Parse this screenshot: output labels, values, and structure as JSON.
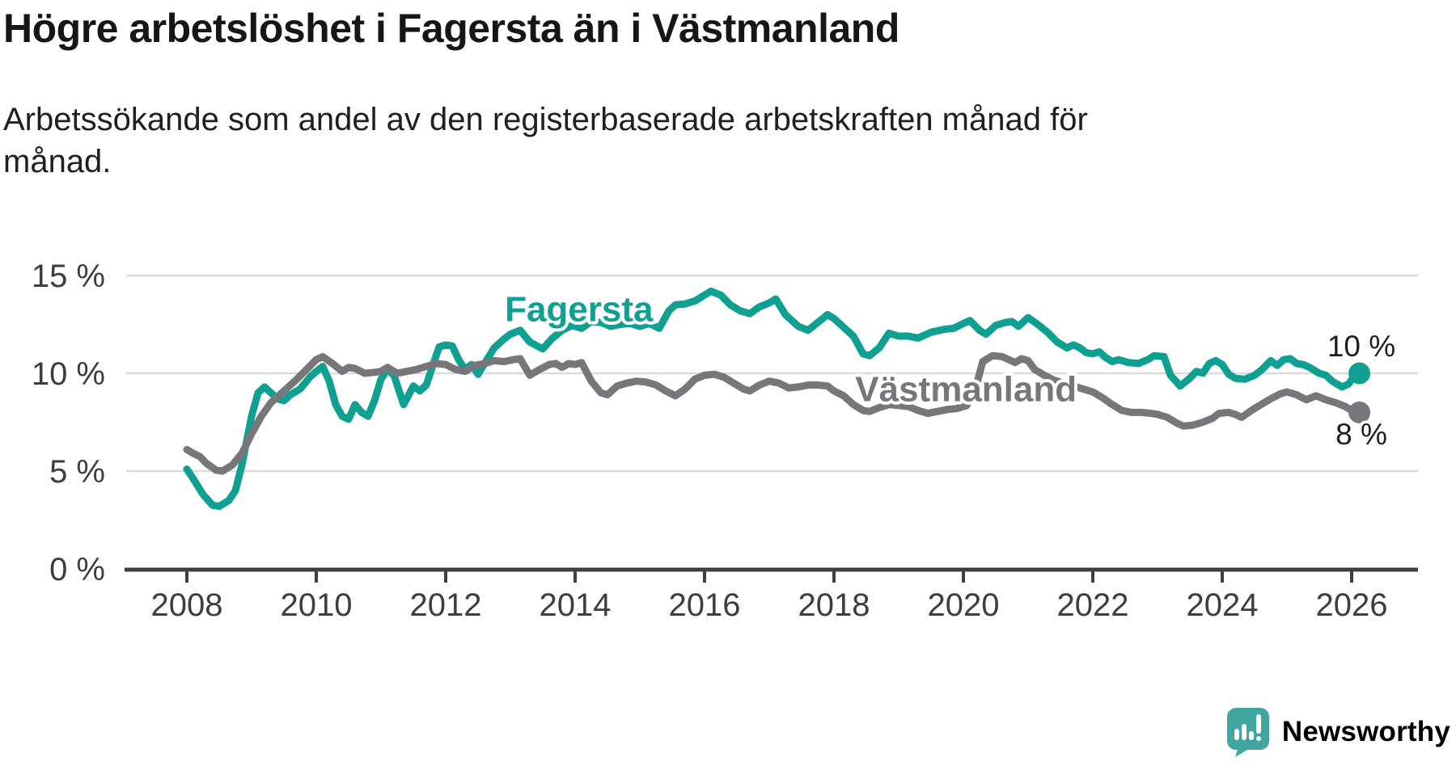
{
  "header": {
    "title": "Högre arbetslöshet i Fagersta än i Västmanland",
    "subtitle": "Arbetssökande som andel av den registerbaserade arbetskraften månad för månad."
  },
  "colors": {
    "fagersta": "#10a091",
    "vastmanland": "#77777b",
    "grid": "#dbdbdb",
    "axis": "#3f3f3f",
    "tick_text": "#3d3d3d",
    "annotation_text": "#1e1e1e",
    "logo": "#41a5a1",
    "background": "#ffffff"
  },
  "footer": {
    "brand": "Newsworthy"
  },
  "chart_data": {
    "type": "line",
    "title": "Högre arbetslöshet i Fagersta än i Västmanland",
    "subtitle": "Arbetssökande som andel av den registerbaserade arbetskraften månad för månad.",
    "xlabel": "",
    "ylabel": "",
    "grid": true,
    "x_axis": {
      "ticks": [
        2008,
        2010,
        2012,
        2014,
        2016,
        2018,
        2020,
        2022,
        2024,
        2026
      ],
      "min": 2007.1,
      "max": 2027.0
    },
    "y_axis": {
      "unit": "%",
      "ylim": [
        0,
        15
      ],
      "ticks": [
        {
          "value": 0,
          "label": "0 %"
        },
        {
          "value": 5,
          "label": "5 %"
        },
        {
          "value": 10,
          "label": "10 %"
        },
        {
          "value": 15,
          "label": "15 %"
        }
      ]
    },
    "annotations": [
      {
        "kind": "series",
        "series": 0,
        "text": "Fagersta",
        "year": 2014.06,
        "value": 13.31
      },
      {
        "kind": "series",
        "series": 1,
        "text": "Västmanland",
        "year": 2020.04,
        "value": 9.21
      },
      {
        "kind": "end",
        "series": 0,
        "text": "10 %",
        "year": 2026.15,
        "value": 11.4
      },
      {
        "kind": "end",
        "series": 1,
        "text": "8 %",
        "year": 2026.15,
        "value": 6.9
      }
    ],
    "series": [
      {
        "name": "Fagersta",
        "color": "#10a091",
        "end_value_label": "10 %",
        "points": [
          [
            2008.0,
            5.1
          ],
          [
            2008.1,
            4.6
          ],
          [
            2008.25,
            3.8
          ],
          [
            2008.4,
            3.25
          ],
          [
            2008.5,
            3.2
          ],
          [
            2008.65,
            3.5
          ],
          [
            2008.75,
            4.0
          ],
          [
            2008.85,
            5.3
          ],
          [
            2009.0,
            7.8
          ],
          [
            2009.1,
            9.0
          ],
          [
            2009.2,
            9.3
          ],
          [
            2009.3,
            9.0
          ],
          [
            2009.4,
            8.7
          ],
          [
            2009.5,
            8.6
          ],
          [
            2009.6,
            8.9
          ],
          [
            2009.75,
            9.2
          ],
          [
            2009.9,
            9.8
          ],
          [
            2010.0,
            10.1
          ],
          [
            2010.1,
            10.35
          ],
          [
            2010.2,
            9.6
          ],
          [
            2010.3,
            8.4
          ],
          [
            2010.4,
            7.8
          ],
          [
            2010.5,
            7.65
          ],
          [
            2010.6,
            8.4
          ],
          [
            2010.7,
            8.0
          ],
          [
            2010.8,
            7.8
          ],
          [
            2010.9,
            8.6
          ],
          [
            2011.0,
            9.7
          ],
          [
            2011.1,
            10.2
          ],
          [
            2011.2,
            9.9
          ],
          [
            2011.35,
            8.4
          ],
          [
            2011.5,
            9.35
          ],
          [
            2011.6,
            9.1
          ],
          [
            2011.7,
            9.4
          ],
          [
            2011.8,
            10.4
          ],
          [
            2011.9,
            11.35
          ],
          [
            2012.0,
            11.45
          ],
          [
            2012.1,
            11.4
          ],
          [
            2012.2,
            10.7
          ],
          [
            2012.3,
            10.2
          ],
          [
            2012.4,
            10.45
          ],
          [
            2012.5,
            9.95
          ],
          [
            2012.6,
            10.5
          ],
          [
            2012.75,
            11.3
          ],
          [
            2012.9,
            11.75
          ],
          [
            2013.0,
            12.0
          ],
          [
            2013.15,
            12.2
          ],
          [
            2013.3,
            11.6
          ],
          [
            2013.5,
            11.25
          ],
          [
            2013.65,
            11.8
          ],
          [
            2013.8,
            12.2
          ],
          [
            2013.95,
            12.45
          ],
          [
            2014.1,
            12.3
          ],
          [
            2014.25,
            12.65
          ],
          [
            2014.4,
            12.6
          ],
          [
            2014.55,
            12.4
          ],
          [
            2014.7,
            12.5
          ],
          [
            2014.85,
            12.55
          ],
          [
            2015.0,
            12.4
          ],
          [
            2015.15,
            12.55
          ],
          [
            2015.3,
            12.3
          ],
          [
            2015.45,
            13.2
          ],
          [
            2015.55,
            13.5
          ],
          [
            2015.7,
            13.55
          ],
          [
            2015.85,
            13.7
          ],
          [
            2016.0,
            14.0
          ],
          [
            2016.1,
            14.2
          ],
          [
            2016.25,
            14.0
          ],
          [
            2016.4,
            13.5
          ],
          [
            2016.55,
            13.2
          ],
          [
            2016.7,
            13.05
          ],
          [
            2016.85,
            13.4
          ],
          [
            2017.0,
            13.6
          ],
          [
            2017.1,
            13.8
          ],
          [
            2017.25,
            13.0
          ],
          [
            2017.45,
            12.4
          ],
          [
            2017.6,
            12.2
          ],
          [
            2017.75,
            12.6
          ],
          [
            2017.9,
            13.0
          ],
          [
            2018.0,
            12.8
          ],
          [
            2018.15,
            12.35
          ],
          [
            2018.3,
            11.9
          ],
          [
            2018.45,
            11.0
          ],
          [
            2018.55,
            10.9
          ],
          [
            2018.7,
            11.3
          ],
          [
            2018.85,
            12.05
          ],
          [
            2019.0,
            11.9
          ],
          [
            2019.15,
            11.9
          ],
          [
            2019.3,
            11.8
          ],
          [
            2019.5,
            12.1
          ],
          [
            2019.7,
            12.25
          ],
          [
            2019.85,
            12.3
          ],
          [
            2020.0,
            12.55
          ],
          [
            2020.1,
            12.7
          ],
          [
            2020.25,
            12.2
          ],
          [
            2020.35,
            12.0
          ],
          [
            2020.5,
            12.45
          ],
          [
            2020.65,
            12.6
          ],
          [
            2020.75,
            12.65
          ],
          [
            2020.85,
            12.4
          ],
          [
            2021.0,
            12.85
          ],
          [
            2021.15,
            12.5
          ],
          [
            2021.3,
            12.1
          ],
          [
            2021.45,
            11.6
          ],
          [
            2021.6,
            11.3
          ],
          [
            2021.7,
            11.45
          ],
          [
            2021.8,
            11.3
          ],
          [
            2021.9,
            11.05
          ],
          [
            2022.0,
            11.0
          ],
          [
            2022.1,
            11.1
          ],
          [
            2022.2,
            10.8
          ],
          [
            2022.3,
            10.6
          ],
          [
            2022.4,
            10.7
          ],
          [
            2022.55,
            10.55
          ],
          [
            2022.7,
            10.5
          ],
          [
            2022.85,
            10.7
          ],
          [
            2022.95,
            10.9
          ],
          [
            2023.1,
            10.85
          ],
          [
            2023.2,
            9.9
          ],
          [
            2023.35,
            9.35
          ],
          [
            2023.5,
            9.75
          ],
          [
            2023.6,
            10.1
          ],
          [
            2023.7,
            10.0
          ],
          [
            2023.8,
            10.5
          ],
          [
            2023.9,
            10.65
          ],
          [
            2024.0,
            10.45
          ],
          [
            2024.1,
            9.95
          ],
          [
            2024.2,
            9.75
          ],
          [
            2024.35,
            9.7
          ],
          [
            2024.5,
            9.9
          ],
          [
            2024.6,
            10.15
          ],
          [
            2024.75,
            10.65
          ],
          [
            2024.85,
            10.4
          ],
          [
            2024.95,
            10.7
          ],
          [
            2025.05,
            10.75
          ],
          [
            2025.15,
            10.5
          ],
          [
            2025.25,
            10.45
          ],
          [
            2025.35,
            10.3
          ],
          [
            2025.5,
            10.0
          ],
          [
            2025.6,
            9.9
          ],
          [
            2025.7,
            9.6
          ],
          [
            2025.85,
            9.3
          ],
          [
            2025.95,
            9.45
          ],
          [
            2026.05,
            9.9
          ],
          [
            2026.12,
            10.0
          ]
        ]
      },
      {
        "name": "Västmanland",
        "color": "#77777b",
        "end_value_label": "8 %",
        "points": [
          [
            2008.0,
            6.1
          ],
          [
            2008.1,
            5.9
          ],
          [
            2008.2,
            5.75
          ],
          [
            2008.3,
            5.4
          ],
          [
            2008.45,
            5.05
          ],
          [
            2008.55,
            5.0
          ],
          [
            2008.7,
            5.3
          ],
          [
            2008.85,
            5.9
          ],
          [
            2009.0,
            6.9
          ],
          [
            2009.15,
            7.8
          ],
          [
            2009.3,
            8.5
          ],
          [
            2009.5,
            9.1
          ],
          [
            2009.7,
            9.7
          ],
          [
            2009.85,
            10.2
          ],
          [
            2010.0,
            10.7
          ],
          [
            2010.1,
            10.85
          ],
          [
            2010.25,
            10.5
          ],
          [
            2010.4,
            10.1
          ],
          [
            2010.5,
            10.3
          ],
          [
            2010.6,
            10.25
          ],
          [
            2010.75,
            10.0
          ],
          [
            2010.9,
            10.05
          ],
          [
            2011.0,
            10.1
          ],
          [
            2011.1,
            10.3
          ],
          [
            2011.25,
            10.0
          ],
          [
            2011.4,
            10.1
          ],
          [
            2011.55,
            10.2
          ],
          [
            2011.7,
            10.35
          ],
          [
            2011.85,
            10.5
          ],
          [
            2012.0,
            10.45
          ],
          [
            2012.15,
            10.2
          ],
          [
            2012.3,
            10.1
          ],
          [
            2012.45,
            10.4
          ],
          [
            2012.6,
            10.5
          ],
          [
            2012.75,
            10.65
          ],
          [
            2012.9,
            10.6
          ],
          [
            2013.05,
            10.7
          ],
          [
            2013.15,
            10.75
          ],
          [
            2013.3,
            9.9
          ],
          [
            2013.45,
            10.2
          ],
          [
            2013.6,
            10.45
          ],
          [
            2013.7,
            10.5
          ],
          [
            2013.8,
            10.3
          ],
          [
            2013.9,
            10.5
          ],
          [
            2014.0,
            10.45
          ],
          [
            2014.1,
            10.55
          ],
          [
            2014.25,
            9.6
          ],
          [
            2014.4,
            9.0
          ],
          [
            2014.5,
            8.9
          ],
          [
            2014.65,
            9.35
          ],
          [
            2014.8,
            9.5
          ],
          [
            2014.95,
            9.6
          ],
          [
            2015.1,
            9.55
          ],
          [
            2015.25,
            9.4
          ],
          [
            2015.4,
            9.1
          ],
          [
            2015.55,
            8.85
          ],
          [
            2015.7,
            9.2
          ],
          [
            2015.85,
            9.7
          ],
          [
            2016.0,
            9.9
          ],
          [
            2016.15,
            9.95
          ],
          [
            2016.3,
            9.8
          ],
          [
            2016.45,
            9.5
          ],
          [
            2016.6,
            9.2
          ],
          [
            2016.7,
            9.1
          ],
          [
            2016.85,
            9.4
          ],
          [
            2017.0,
            9.6
          ],
          [
            2017.15,
            9.5
          ],
          [
            2017.3,
            9.25
          ],
          [
            2017.45,
            9.3
          ],
          [
            2017.6,
            9.4
          ],
          [
            2017.75,
            9.4
          ],
          [
            2017.9,
            9.35
          ],
          [
            2018.0,
            9.1
          ],
          [
            2018.15,
            8.85
          ],
          [
            2018.3,
            8.4
          ],
          [
            2018.45,
            8.1
          ],
          [
            2018.55,
            8.05
          ],
          [
            2018.7,
            8.25
          ],
          [
            2018.85,
            8.4
          ],
          [
            2019.0,
            8.35
          ],
          [
            2019.15,
            8.3
          ],
          [
            2019.3,
            8.1
          ],
          [
            2019.45,
            7.95
          ],
          [
            2019.6,
            8.05
          ],
          [
            2019.75,
            8.15
          ],
          [
            2019.9,
            8.2
          ],
          [
            2020.05,
            8.35
          ],
          [
            2020.2,
            9.4
          ],
          [
            2020.3,
            10.6
          ],
          [
            2020.45,
            10.9
          ],
          [
            2020.6,
            10.85
          ],
          [
            2020.7,
            10.7
          ],
          [
            2020.8,
            10.55
          ],
          [
            2020.9,
            10.75
          ],
          [
            2021.0,
            10.65
          ],
          [
            2021.1,
            10.2
          ],
          [
            2021.25,
            9.9
          ],
          [
            2021.4,
            9.65
          ],
          [
            2021.55,
            9.5
          ],
          [
            2021.7,
            9.35
          ],
          [
            2021.85,
            9.2
          ],
          [
            2022.0,
            9.05
          ],
          [
            2022.15,
            8.75
          ],
          [
            2022.3,
            8.4
          ],
          [
            2022.45,
            8.1
          ],
          [
            2022.6,
            8.0
          ],
          [
            2022.75,
            8.0
          ],
          [
            2022.9,
            7.95
          ],
          [
            2023.0,
            7.9
          ],
          [
            2023.15,
            7.75
          ],
          [
            2023.3,
            7.45
          ],
          [
            2023.4,
            7.3
          ],
          [
            2023.55,
            7.35
          ],
          [
            2023.7,
            7.5
          ],
          [
            2023.85,
            7.7
          ],
          [
            2023.95,
            7.95
          ],
          [
            2024.1,
            8.0
          ],
          [
            2024.2,
            7.9
          ],
          [
            2024.3,
            7.75
          ],
          [
            2024.45,
            8.1
          ],
          [
            2024.6,
            8.4
          ],
          [
            2024.75,
            8.7
          ],
          [
            2024.9,
            8.95
          ],
          [
            2025.0,
            9.05
          ],
          [
            2025.15,
            8.9
          ],
          [
            2025.3,
            8.65
          ],
          [
            2025.45,
            8.85
          ],
          [
            2025.6,
            8.65
          ],
          [
            2025.75,
            8.5
          ],
          [
            2025.9,
            8.3
          ],
          [
            2026.0,
            8.1
          ],
          [
            2026.12,
            8.0
          ]
        ]
      }
    ]
  }
}
